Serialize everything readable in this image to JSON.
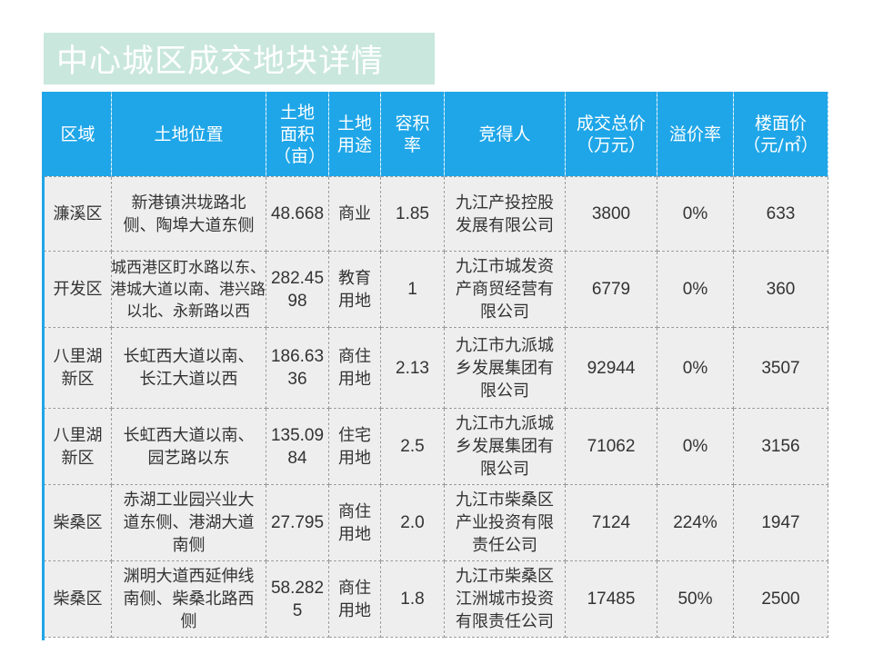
{
  "title": "中心城区成交地块详情",
  "colors": {
    "title_bg": "#c9e7dd",
    "header_bg": "#1fa6e8",
    "row_bg": "#eeeeee"
  },
  "table": {
    "headers": {
      "district": "区域",
      "location": "土地位置",
      "area": "土地面积（亩）",
      "usage": "土地用途",
      "far": "容积率",
      "winner": "竞得人",
      "total_price": "成交总价（万元）",
      "premium": "溢价率",
      "floor_price": "楼面价（元/㎡）"
    },
    "rows": [
      {
        "district": "濂溪区",
        "location": "新港镇洪垅路北侧、陶埠大道东侧",
        "area": "48.668",
        "usage": "商业",
        "far": "1.85",
        "winner": "九江产投控股发展有限公司",
        "total_price": "3800",
        "premium": "0%",
        "floor_price": "633"
      },
      {
        "district": "开发区",
        "location": "城西港区盯水路以东、港城大道以南、港兴路以北、永新路以西",
        "area": "282.4598",
        "usage": "教育用地",
        "far": "1",
        "winner": "九江市城发资产商贸经营有限公司",
        "total_price": "6779",
        "premium": "0%",
        "floor_price": "360"
      },
      {
        "district": "八里湖新区",
        "location": "长虹西大道以南、长江大道以西",
        "area": "186.6336",
        "usage": "商住用地",
        "far": "2.13",
        "winner": "九江市九派城乡发展集团有限公司",
        "total_price": "92944",
        "premium": "0%",
        "floor_price": "3507"
      },
      {
        "district": "八里湖新区",
        "location": "长虹西大道以南、园艺路以东",
        "area": "135.0984",
        "usage": "住宅用地",
        "far": "2.5",
        "winner": "九江市九派城乡发展集团有限公司",
        "total_price": "71062",
        "premium": "0%",
        "floor_price": "3156"
      },
      {
        "district": "柴桑区",
        "location": "赤湖工业园兴业大道东侧、港湖大道南侧",
        "area": "27.795",
        "usage": "商住用地",
        "far": "2.0",
        "winner": "九江市柴桑区产业投资有限责任公司",
        "total_price": "7124",
        "premium": "224%",
        "floor_price": "1947"
      },
      {
        "district": "柴桑区",
        "location": "渊明大道西延伸线南侧、柴桑北路西侧",
        "area": "58.2825",
        "usage": "商住用地",
        "far": "1.8",
        "winner": "九江市柴桑区江洲城市投资有限责任公司",
        "total_price": "17485",
        "premium": "50%",
        "floor_price": "2500"
      }
    ]
  }
}
